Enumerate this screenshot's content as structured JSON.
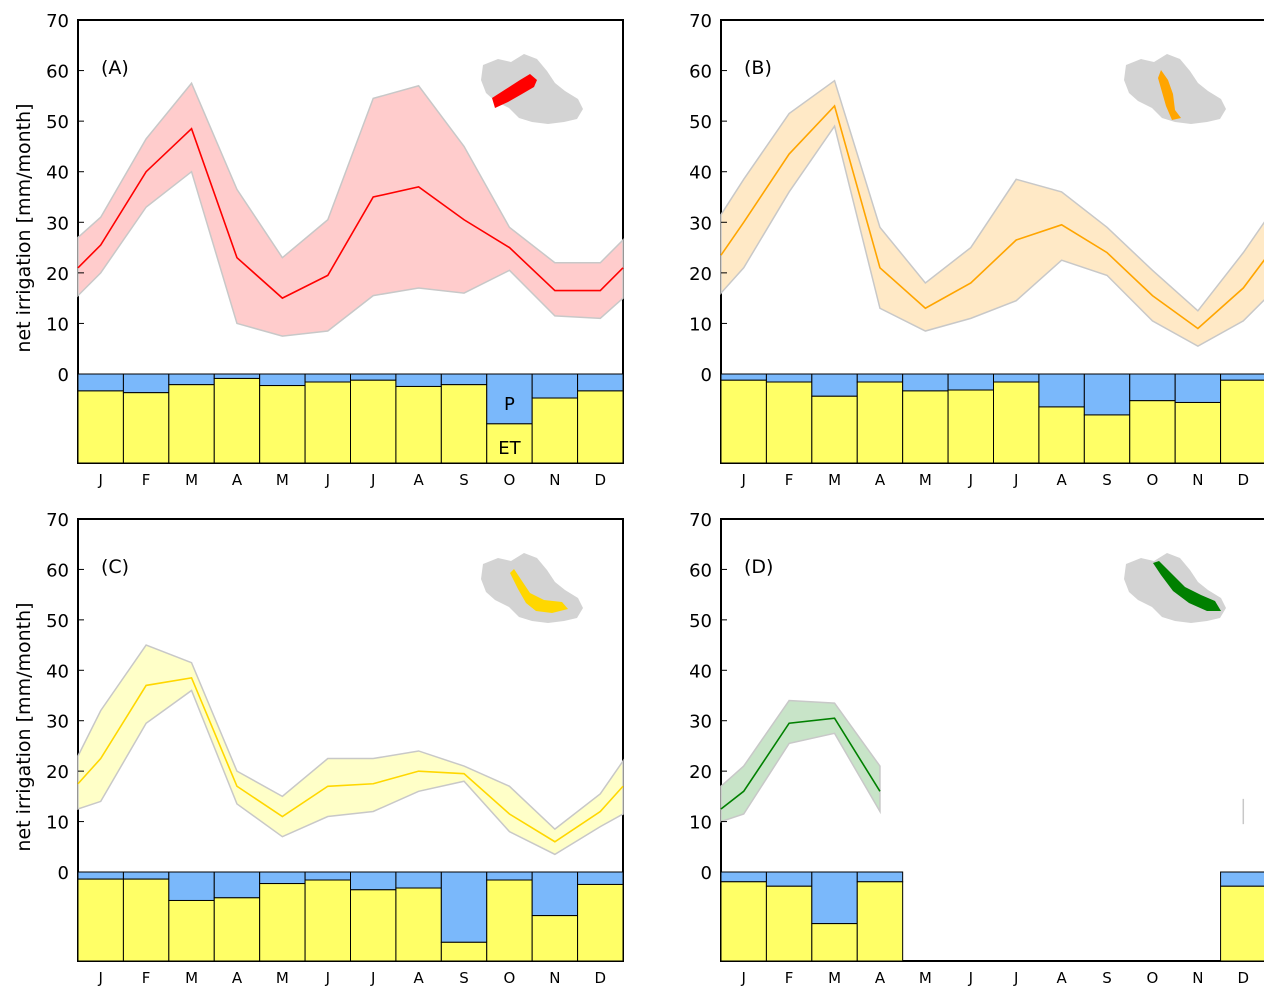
{
  "ylabel": "net irrigation  [mm/month]",
  "months": [
    "J",
    "F",
    "M",
    "A",
    "M",
    "J",
    "J",
    "A",
    "S",
    "O",
    "N",
    "D"
  ],
  "bar_labels": {
    "p": "P",
    "et": "ET"
  },
  "colors": {
    "p_bar": "#7ab8fb",
    "et_bar": "#ffff66",
    "bar_edge": "#000000",
    "inset_basin": "#d3d3d3"
  },
  "chart_data": [
    {
      "type": "line",
      "label": "(A)",
      "color": "#ff0000",
      "band_color": "#ffcccc",
      "x": [
        "J",
        "F",
        "M",
        "A",
        "M",
        "J",
        "J",
        "A",
        "S",
        "O",
        "N",
        "D"
      ],
      "ylim": [
        0,
        70
      ],
      "yticks": [
        0,
        10,
        20,
        30,
        40,
        50,
        60,
        70
      ],
      "series": [
        {
          "values": [
            25.5,
            40,
            48.5,
            23,
            15,
            19.5,
            35,
            37,
            30.5,
            25,
            16.5,
            16.5
          ]
        },
        {
          "values": [
            31,
            46.5,
            57.5,
            36.5,
            23,
            30.5,
            54.5,
            57,
            45,
            29,
            22,
            22
          ]
        },
        {
          "values": [
            20,
            33,
            40,
            10,
            7.5,
            8.5,
            15.5,
            17,
            16,
            20.5,
            11.5,
            11
          ]
        }
      ],
      "edges": {
        "left": [
          21,
          27,
          15.5
        ],
        "right": [
          21,
          26.5,
          15
        ]
      },
      "stacked_bar": {
        "et_fraction": [
          0.81,
          0.79,
          0.88,
          0.95,
          0.87,
          0.91,
          0.93,
          0.86,
          0.88,
          0.44,
          0.73,
          0.81
        ]
      }
    },
    {
      "type": "line",
      "label": "(B)",
      "color": "#ffa500",
      "band_color": "#ffe9c6",
      "x": [
        "J",
        "F",
        "M",
        "A",
        "M",
        "J",
        "J",
        "A",
        "S",
        "O",
        "N",
        "D"
      ],
      "ylim": [
        0,
        70
      ],
      "yticks": [
        0,
        10,
        20,
        30,
        40,
        50,
        60,
        70
      ],
      "series": [
        {
          "values": [
            30,
            43.5,
            53,
            21,
            13,
            18,
            26.5,
            29.5,
            24,
            15.5,
            9,
            17
          ]
        },
        {
          "values": [
            38.5,
            51.5,
            58,
            29,
            18,
            25,
            38.5,
            36,
            29,
            20.5,
            12.5,
            24
          ]
        },
        {
          "values": [
            21,
            36,
            49,
            13,
            8.5,
            11,
            14.5,
            22.5,
            19.5,
            10.5,
            5.5,
            10.5
          ]
        }
      ],
      "edges": {
        "left": [
          23.5,
          31.5,
          16
        ],
        "right": [
          23,
          30.5,
          15
        ]
      },
      "stacked_bar": {
        "et_fraction": [
          0.93,
          0.91,
          0.75,
          0.91,
          0.81,
          0.82,
          0.91,
          0.63,
          0.54,
          0.7,
          0.68,
          0.93
        ]
      }
    },
    {
      "type": "line",
      "label": "(C)",
      "color": "#ffd700",
      "band_color": "#ffffc8",
      "x": [
        "J",
        "F",
        "M",
        "A",
        "M",
        "J",
        "J",
        "A",
        "S",
        "O",
        "N",
        "D"
      ],
      "ylim": [
        0,
        70
      ],
      "yticks": [
        0,
        10,
        20,
        30,
        40,
        50,
        60,
        70
      ],
      "series": [
        {
          "values": [
            22.5,
            37,
            38.5,
            17,
            11,
            17,
            17.5,
            20,
            19.5,
            11.5,
            6,
            12
          ]
        },
        {
          "values": [
            32,
            45,
            41.5,
            20,
            15,
            22.5,
            22.5,
            24,
            21,
            17,
            8.5,
            15.5
          ]
        },
        {
          "values": [
            14,
            29.5,
            36,
            13.5,
            7,
            11,
            12,
            16,
            18,
            8,
            3.5,
            9
          ]
        }
      ],
      "edges": {
        "left": [
          17.5,
          23,
          12.5
        ],
        "right": [
          17,
          22,
          11.5
        ]
      },
      "stacked_bar": {
        "et_fraction": [
          0.92,
          0.92,
          0.68,
          0.71,
          0.87,
          0.91,
          0.8,
          0.82,
          0.21,
          0.91,
          0.51,
          0.86
        ]
      }
    },
    {
      "type": "line",
      "label": "(D)",
      "color": "#008000",
      "band_color": "#c8e4c8",
      "x": [
        "J",
        "F",
        "M",
        "A",
        "M",
        "J",
        "J",
        "A",
        "S",
        "O",
        "N",
        "D"
      ],
      "ylim": [
        0,
        70
      ],
      "yticks": [
        0,
        10,
        20,
        30,
        40,
        50,
        60,
        70
      ],
      "series": [
        {
          "values": [
            16,
            29.5,
            30.5,
            16,
            null,
            null,
            null,
            null,
            null,
            null,
            null,
            12
          ]
        },
        {
          "values": [
            21,
            34,
            33.5,
            21,
            null,
            null,
            null,
            null,
            null,
            null,
            null,
            14.5
          ]
        },
        {
          "values": [
            11.5,
            25.5,
            27.5,
            12,
            null,
            null,
            null,
            null,
            null,
            null,
            null,
            9.5
          ]
        }
      ],
      "edges": {
        "left": [
          12.5,
          17,
          10
        ],
        "right": [
          null,
          null,
          null
        ]
      },
      "stacked_bar": {
        "et_fraction": [
          0.89,
          0.84,
          0.42,
          0.89,
          null,
          null,
          null,
          null,
          null,
          null,
          null,
          0.84
        ]
      }
    }
  ]
}
